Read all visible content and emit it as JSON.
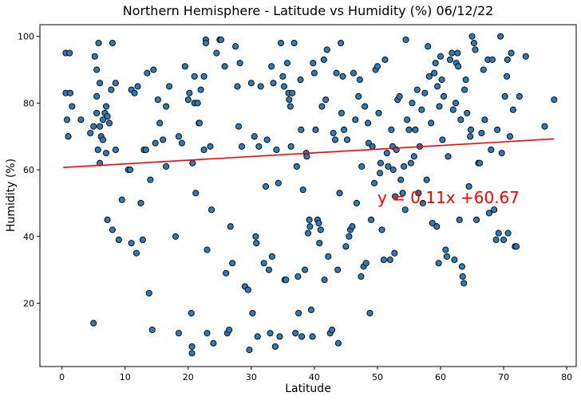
{
  "chart_data": {
    "type": "scatter",
    "title": "Northern Hemisphere - Latitude vs Humidity (%) 06/12/22",
    "xlabel": "Latitude",
    "ylabel": "Humidity (%)",
    "xlim": [
      -3.5,
      81.5
    ],
    "ylim": [
      1,
      103.5
    ],
    "xticks": [
      0,
      10,
      20,
      30,
      40,
      50,
      60,
      70,
      80
    ],
    "yticks": [
      20,
      40,
      60,
      80,
      100
    ],
    "grid": false,
    "legend": "none",
    "point_color": "#2b7bb9",
    "point_edge_color": "#000000",
    "regression": {
      "slope": 0.11,
      "intercept": 60.67,
      "x_range": [
        0.2,
        78.0
      ],
      "color": "#ff0000",
      "equation": "y = 0.11x +60.67",
      "label_x": 50,
      "label_y": 50
    },
    "series": [
      {
        "points": [
          [
            0.6,
            95
          ],
          [
            1.2,
            95
          ],
          [
            0.6,
            83
          ],
          [
            1.3,
            83
          ],
          [
            0.8,
            75
          ],
          [
            1.0,
            70
          ],
          [
            1.6,
            79
          ],
          [
            3.0,
            75
          ],
          [
            4.5,
            71
          ],
          [
            5.0,
            14
          ],
          [
            5.2,
            94
          ],
          [
            5.5,
            90
          ],
          [
            5.8,
            98
          ],
          [
            6.0,
            86
          ],
          [
            5.5,
            82
          ],
          [
            5.5,
            77
          ],
          [
            6.0,
            73
          ],
          [
            6.5,
            75
          ],
          [
            5.0,
            73
          ],
          [
            5.7,
            66
          ],
          [
            6.2,
            70
          ],
          [
            6.5,
            69
          ],
          [
            6.8,
            77
          ],
          [
            7.0,
            79
          ],
          [
            7.2,
            76
          ],
          [
            7.5,
            74
          ],
          [
            7.8,
            84
          ],
          [
            8.0,
            98
          ],
          [
            8.5,
            86
          ],
          [
            7.0,
            65
          ],
          [
            8.5,
            66
          ],
          [
            6.0,
            62
          ],
          [
            7.2,
            45
          ],
          [
            8.0,
            42
          ],
          [
            9.0,
            39
          ],
          [
            9.5,
            51
          ],
          [
            10.5,
            60
          ],
          [
            11.0,
            38
          ],
          [
            10.8,
            60
          ],
          [
            11.0,
            84
          ],
          [
            11.5,
            83
          ],
          [
            11.8,
            35
          ],
          [
            12.0,
            85
          ],
          [
            12.5,
            50
          ],
          [
            12.8,
            39
          ],
          [
            13.0,
            66
          ],
          [
            13.3,
            66
          ],
          [
            13.5,
            89
          ],
          [
            13.8,
            23
          ],
          [
            14.0,
            57
          ],
          [
            14.5,
            90
          ],
          [
            14.3,
            12
          ],
          [
            14.8,
            68
          ],
          [
            15.2,
            81
          ],
          [
            15.5,
            74
          ],
          [
            16.0,
            69
          ],
          [
            16.5,
            61
          ],
          [
            16.5,
            79
          ],
          [
            17.0,
            85
          ],
          [
            18.0,
            40
          ],
          [
            18.5,
            11
          ],
          [
            18.5,
            70
          ],
          [
            19.0,
            68
          ],
          [
            19.5,
            91
          ],
          [
            20.0,
            81
          ],
          [
            20.2,
            83
          ],
          [
            20.5,
            17
          ],
          [
            20.6,
            7
          ],
          [
            20.6,
            5
          ],
          [
            20.7,
            62
          ],
          [
            21.0,
            80
          ],
          [
            21.0,
            88
          ],
          [
            21.2,
            53
          ],
          [
            21.5,
            80
          ],
          [
            21.7,
            74
          ],
          [
            21.8,
            74
          ],
          [
            22.0,
            84
          ],
          [
            22.5,
            88
          ],
          [
            22.5,
            66
          ],
          [
            22.8,
            99
          ],
          [
            22.8,
            98
          ],
          [
            23.0,
            36
          ],
          [
            23.0,
            11
          ],
          [
            23.5,
            67
          ],
          [
            23.7,
            48
          ],
          [
            24.0,
            8
          ],
          [
            24.5,
            95
          ],
          [
            25.0,
            99
          ],
          [
            25.2,
            99
          ],
          [
            25.8,
            91
          ],
          [
            26.0,
            29
          ],
          [
            26.2,
            11
          ],
          [
            26.5,
            12
          ],
          [
            26.7,
            43
          ],
          [
            27.0,
            32
          ],
          [
            27.5,
            97
          ],
          [
            27.8,
            85
          ],
          [
            28.0,
            73
          ],
          [
            28.2,
            92
          ],
          [
            28.5,
            67
          ],
          [
            29.0,
            25
          ],
          [
            29.5,
            24
          ],
          [
            29.7,
            6
          ],
          [
            30.0,
            86
          ],
          [
            30.2,
            17
          ],
          [
            30.5,
            70
          ],
          [
            30.7,
            40
          ],
          [
            30.8,
            38
          ],
          [
            31.0,
            10
          ],
          [
            31.2,
            67
          ],
          [
            31.5,
            85
          ],
          [
            32.0,
            32
          ],
          [
            32.3,
            55
          ],
          [
            32.5,
            69
          ],
          [
            32.8,
            30
          ],
          [
            33.0,
            11
          ],
          [
            33.2,
            91
          ],
          [
            33.3,
            34
          ],
          [
            33.5,
            86
          ],
          [
            33.8,
            7
          ],
          [
            34.0,
            66
          ],
          [
            34.3,
            56
          ],
          [
            34.5,
            10
          ],
          [
            34.7,
            98
          ],
          [
            35.0,
            88
          ],
          [
            35.2,
            85
          ],
          [
            35.3,
            27
          ],
          [
            35.5,
            27
          ],
          [
            35.7,
            92
          ],
          [
            35.9,
            83
          ],
          [
            36.0,
            81
          ],
          [
            36.2,
            79
          ],
          [
            36.3,
            67
          ],
          [
            36.5,
            83
          ],
          [
            36.8,
            98
          ],
          [
            37.0,
            11
          ],
          [
            37.2,
            61
          ],
          [
            37.4,
            28
          ],
          [
            37.5,
            17
          ],
          [
            37.8,
            87
          ],
          [
            37.9,
            72
          ],
          [
            38.0,
            10
          ],
          [
            38.2,
            54
          ],
          [
            38.5,
            30
          ],
          [
            38.7,
            65
          ],
          [
            38.8,
            64
          ],
          [
            39.0,
            41
          ],
          [
            39.2,
            45
          ],
          [
            39.3,
            43
          ],
          [
            39.5,
            18
          ],
          [
            39.7,
            10
          ],
          [
            39.8,
            92
          ],
          [
            40.0,
            89
          ],
          [
            40.2,
            72
          ],
          [
            40.5,
            45
          ],
          [
            40.7,
            44
          ],
          [
            40.8,
            38
          ],
          [
            41.0,
            42
          ],
          [
            41.2,
            79
          ],
          [
            41.5,
            93
          ],
          [
            41.6,
            27
          ],
          [
            41.8,
            81
          ],
          [
            42.0,
            96
          ],
          [
            42.2,
            34
          ],
          [
            42.5,
            11
          ],
          [
            42.8,
            12
          ],
          [
            43.0,
            71
          ],
          [
            43.3,
            69
          ],
          [
            43.5,
            89
          ],
          [
            43.7,
            30
          ],
          [
            43.8,
            8
          ],
          [
            44.0,
            53
          ],
          [
            44.2,
            98
          ],
          [
            44.3,
            77
          ],
          [
            44.5,
            88
          ],
          [
            44.7,
            72
          ],
          [
            45.0,
            37
          ],
          [
            45.2,
            69
          ],
          [
            45.5,
            40
          ],
          [
            45.7,
            42
          ],
          [
            46.0,
            43
          ],
          [
            46.2,
            89
          ],
          [
            46.5,
            75
          ],
          [
            46.7,
            50
          ],
          [
            47.0,
            82
          ],
          [
            47.2,
            87
          ],
          [
            47.4,
            28
          ],
          [
            47.5,
            61
          ],
          [
            47.8,
            31
          ],
          [
            48.0,
            79
          ],
          [
            48.2,
            32
          ],
          [
            48.5,
            74
          ],
          [
            48.6,
            68
          ],
          [
            48.8,
            17
          ],
          [
            49.0,
            45
          ],
          [
            49.2,
            67
          ],
          [
            49.5,
            56
          ],
          [
            49.7,
            90
          ],
          [
            50.0,
            91
          ],
          [
            50.2,
            77
          ],
          [
            50.4,
            59
          ],
          [
            50.5,
            62
          ],
          [
            50.7,
            42
          ],
          [
            51.0,
            33
          ],
          [
            51.2,
            93
          ],
          [
            51.5,
            65
          ],
          [
            51.7,
            61
          ],
          [
            52.0,
            33
          ],
          [
            52.2,
            72
          ],
          [
            52.4,
            67
          ],
          [
            52.5,
            60
          ],
          [
            52.7,
            35
          ],
          [
            52.8,
            52
          ],
          [
            53.0,
            66
          ],
          [
            53.2,
            81
          ],
          [
            53.5,
            82
          ],
          [
            53.7,
            57
          ],
          [
            54.0,
            53
          ],
          [
            54.2,
            61
          ],
          [
            54.4,
            48
          ],
          [
            54.5,
            99
          ],
          [
            54.7,
            75
          ],
          [
            55.0,
            72
          ],
          [
            55.3,
            62
          ],
          [
            55.5,
            80
          ],
          [
            55.8,
            64
          ],
          [
            56.0,
            72
          ],
          [
            56.3,
            84
          ],
          [
            56.5,
            53
          ],
          [
            56.7,
            67
          ],
          [
            57.0,
            78
          ],
          [
            57.2,
            50
          ],
          [
            57.5,
            83
          ],
          [
            57.8,
            57
          ],
          [
            58.0,
            97
          ],
          [
            58.2,
            88
          ],
          [
            58.5,
            74
          ],
          [
            58.7,
            44
          ],
          [
            59.0,
            89
          ],
          [
            59.2,
            92
          ],
          [
            59.4,
            43
          ],
          [
            59.5,
            85
          ],
          [
            59.7,
            32
          ],
          [
            59.8,
            79
          ],
          [
            60.0,
            94
          ],
          [
            60.2,
            87
          ],
          [
            60.3,
            69
          ],
          [
            60.5,
            82
          ],
          [
            60.8,
            36
          ],
          [
            61.0,
            34
          ],
          [
            61.2,
            64
          ],
          [
            61.5,
            93
          ],
          [
            61.8,
            95
          ],
          [
            62.0,
            78
          ],
          [
            62.2,
            33
          ],
          [
            62.4,
            80
          ],
          [
            62.5,
            92
          ],
          [
            62.7,
            95
          ],
          [
            62.8,
            91
          ],
          [
            63.0,
            45
          ],
          [
            63.2,
            75
          ],
          [
            63.4,
            31
          ],
          [
            63.5,
            28
          ],
          [
            63.7,
            26
          ],
          [
            63.8,
            84
          ],
          [
            64.0,
            87
          ],
          [
            64.2,
            77
          ],
          [
            64.5,
            55
          ],
          [
            64.7,
            70
          ],
          [
            64.8,
            72
          ],
          [
            65.0,
            100
          ],
          [
            65.3,
            98
          ],
          [
            65.5,
            96
          ],
          [
            65.7,
            45
          ],
          [
            66.0,
            62
          ],
          [
            66.2,
            62
          ],
          [
            66.5,
            71
          ],
          [
            66.8,
            90
          ],
          [
            67.0,
            75
          ],
          [
            67.5,
            93
          ],
          [
            67.7,
            47
          ],
          [
            68.0,
            66
          ],
          [
            68.2,
            93
          ],
          [
            68.5,
            48
          ],
          [
            68.8,
            39
          ],
          [
            69.0,
            72
          ],
          [
            69.2,
            41
          ],
          [
            69.5,
            100
          ],
          [
            69.7,
            65
          ],
          [
            70.0,
            39
          ],
          [
            70.2,
            82
          ],
          [
            70.5,
            88
          ],
          [
            70.6,
            93
          ],
          [
            70.7,
            41
          ],
          [
            71.0,
            70
          ],
          [
            71.2,
            95
          ],
          [
            71.5,
            78
          ],
          [
            71.8,
            37
          ],
          [
            72.0,
            37
          ],
          [
            72.5,
            82
          ],
          [
            73.5,
            94
          ],
          [
            76.5,
            73
          ],
          [
            78.0,
            81
          ]
        ]
      }
    ]
  }
}
